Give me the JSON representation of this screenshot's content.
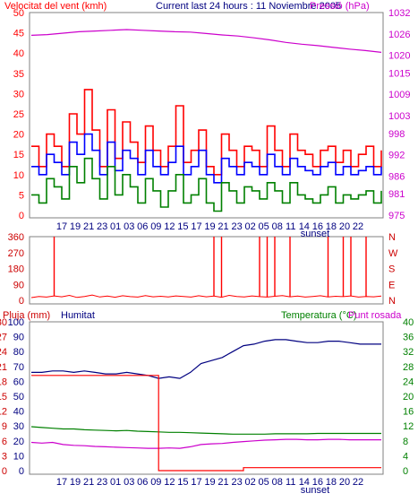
{
  "chart_data": [
    {
      "type": "line",
      "panel": "wind-and-pressure",
      "title": "Current last 24 hours : 11 Noviembre 2005",
      "ylabel_left": "Velocitat del vent (kmh)",
      "ylabel_right": "Pressió (hPa)",
      "yticks_left": [
        0,
        5,
        10,
        15,
        20,
        25,
        30,
        35,
        40,
        45,
        50
      ],
      "yticks_right": [
        975,
        981,
        986,
        992,
        998,
        1003,
        1009,
        1015,
        1020,
        1026,
        1032
      ],
      "xticks": [
        "17",
        "19",
        "21",
        "23",
        "01",
        "03",
        "06",
        "09",
        "12",
        "15",
        "17",
        "19",
        "21",
        "23",
        "02",
        "05",
        "08",
        "11",
        "14",
        "16",
        "18",
        "20",
        "22"
      ],
      "xtick_sunset_label": "sunset",
      "ylim_left": [
        0,
        50
      ],
      "ylim_right": [
        975,
        1032
      ],
      "grid": false,
      "colors": {
        "gust": "#ff0000",
        "average": "#0000ff",
        "min": "#008000",
        "pressure": "#cc00cc",
        "frame": "#808080"
      },
      "series": [
        {
          "key": "gust",
          "values": [
            17,
            12,
            20,
            17,
            12,
            25,
            20,
            31,
            21,
            12,
            26,
            14,
            23,
            18,
            13,
            22,
            16,
            12,
            17,
            27,
            13,
            16,
            21,
            12,
            10,
            20,
            16,
            12,
            17,
            16,
            12,
            22,
            16,
            12,
            20,
            16,
            15,
            12,
            16,
            17,
            13,
            16,
            12,
            15,
            17,
            12,
            16
          ]
        },
        {
          "key": "average",
          "values": [
            12,
            10,
            15,
            13,
            10,
            18,
            15,
            20,
            16,
            10,
            18,
            11,
            16,
            14,
            10,
            16,
            12,
            10,
            13,
            17,
            10,
            12,
            16,
            10,
            8,
            14,
            12,
            10,
            13,
            12,
            10,
            15,
            12,
            10,
            14,
            12,
            11,
            10,
            12,
            13,
            10,
            12,
            10,
            11,
            12,
            10,
            12
          ]
        },
        {
          "key": "min",
          "values": [
            5,
            3,
            9,
            7,
            4,
            12,
            8,
            14,
            9,
            4,
            12,
            5,
            10,
            7,
            3,
            9,
            6,
            2,
            6,
            10,
            3,
            5,
            9,
            3,
            1,
            8,
            6,
            3,
            7,
            6,
            4,
            8,
            6,
            3,
            8,
            5,
            4,
            3,
            5,
            7,
            3,
            5,
            4,
            5,
            6,
            3,
            6
          ]
        },
        {
          "key": "pressure",
          "values": [
            1025.6,
            1025.8,
            1026.2,
            1026.6,
            1026.8,
            1027.0,
            1027.2,
            1027.0,
            1026.8,
            1026.6,
            1026.5,
            1026.1,
            1025.7,
            1025.4,
            1024.9,
            1024.3,
            1023.6,
            1023.1,
            1022.7,
            1022.2,
            1021.7,
            1021.3,
            1020.8
          ]
        }
      ]
    },
    {
      "type": "line",
      "panel": "wind-direction",
      "yticks_left": [
        0,
        90,
        180,
        270,
        360
      ],
      "yticks_right": [
        "N",
        "W",
        "S",
        "E",
        "N"
      ],
      "ylim": [
        0,
        360
      ],
      "colors": {
        "direction": "#ff0000",
        "frame": "#808080"
      },
      "baseline_values": [
        15,
        22,
        18,
        25,
        20,
        28,
        16,
        22,
        30,
        19,
        24,
        17,
        26,
        21,
        18,
        27,
        20,
        23,
        19,
        25,
        22,
        18,
        26,
        20,
        24,
        17,
        28,
        22,
        19,
        25,
        21,
        18,
        23,
        27,
        20,
        24,
        18,
        22,
        26,
        19,
        23,
        21,
        25,
        18,
        22,
        20,
        24
      ],
      "spike_indices": [
        3,
        24,
        25,
        30,
        31,
        32,
        34,
        39,
        41,
        42,
        44
      ]
    },
    {
      "type": "line",
      "panel": "rain-humidity-temperature",
      "ylabel_rain": "Pluja (mm)",
      "ylabel_humidity": "Humitat",
      "ylabel_temperature": "Temperatura (°C)",
      "ylabel_dewpoint": "Punt rosada",
      "yticks_rain": [
        0,
        3,
        6,
        9,
        12,
        15,
        18,
        21,
        24,
        27,
        30
      ],
      "yticks_humidity": [
        0,
        10,
        20,
        30,
        40,
        50,
        60,
        70,
        80,
        90,
        100
      ],
      "yticks_temperature": [
        0,
        4,
        8,
        12,
        16,
        20,
        24,
        28,
        32,
        36,
        40
      ],
      "ylim_humidity": [
        0,
        100
      ],
      "ylim_temperature": [
        0,
        40
      ],
      "ylim_rain": [
        0,
        30
      ],
      "xticks": [
        "17",
        "19",
        "21",
        "23",
        "01",
        "03",
        "06",
        "09",
        "12",
        "15",
        "17",
        "19",
        "21",
        "23",
        "02",
        "05",
        "08",
        "11",
        "14",
        "16",
        "18",
        "20",
        "22"
      ],
      "xtick_sunset_label": "sunset",
      "colors": {
        "rain": "#ff0000",
        "humidity": "#000080",
        "temperature": "#008000",
        "dewpoint": "#cc00cc",
        "frame": "#808080"
      },
      "series": [
        {
          "key": "humidity",
          "values": [
            66,
            66,
            67,
            67,
            66,
            67,
            66,
            65,
            65,
            66,
            65,
            64,
            62,
            63,
            62,
            66,
            72,
            74,
            76,
            80,
            84,
            85,
            87,
            88,
            88,
            87,
            86,
            86,
            87,
            87,
            86,
            85,
            85,
            85
          ]
        },
        {
          "key": "temperature",
          "values": [
            11.8,
            11.6,
            11.4,
            11.2,
            11.2,
            11.0,
            10.9,
            10.8,
            10.7,
            10.8,
            10.6,
            10.5,
            10.4,
            10.3,
            10.3,
            10.2,
            10.1,
            10.0,
            9.9,
            9.8,
            9.8,
            9.8,
            9.8,
            9.9,
            9.9,
            9.9,
            9.9,
            10.0,
            10.0,
            10.0,
            10.0,
            10.0,
            10.0,
            10.0
          ]
        },
        {
          "key": "dewpoint",
          "values": [
            7.6,
            7.4,
            7.6,
            7.0,
            6.8,
            6.7,
            6.5,
            6.4,
            6.3,
            6.2,
            6.1,
            6.0,
            6.0,
            6.1,
            6.0,
            6.4,
            7.0,
            7.2,
            7.3,
            7.6,
            7.8,
            8.0,
            8.2,
            8.3,
            8.4,
            8.4,
            8.3,
            8.3,
            8.4,
            8.4,
            8.3,
            8.3,
            8.3,
            8.3
          ]
        },
        {
          "key": "rain",
          "values": [
            19.2,
            19.2,
            19.2,
            19.2,
            19.2,
            19.2,
            19.2,
            19.2,
            19.2,
            19.2,
            19.2,
            19.2,
            0.0,
            0.0,
            0.0,
            0.0,
            0.0,
            0.0,
            0.0,
            0.0,
            0.6,
            0.6,
            0.6,
            0.6,
            0.6,
            0.6,
            0.6,
            0.6,
            0.6,
            0.6,
            0.6,
            0.6,
            0.6,
            0.6
          ]
        }
      ]
    }
  ]
}
